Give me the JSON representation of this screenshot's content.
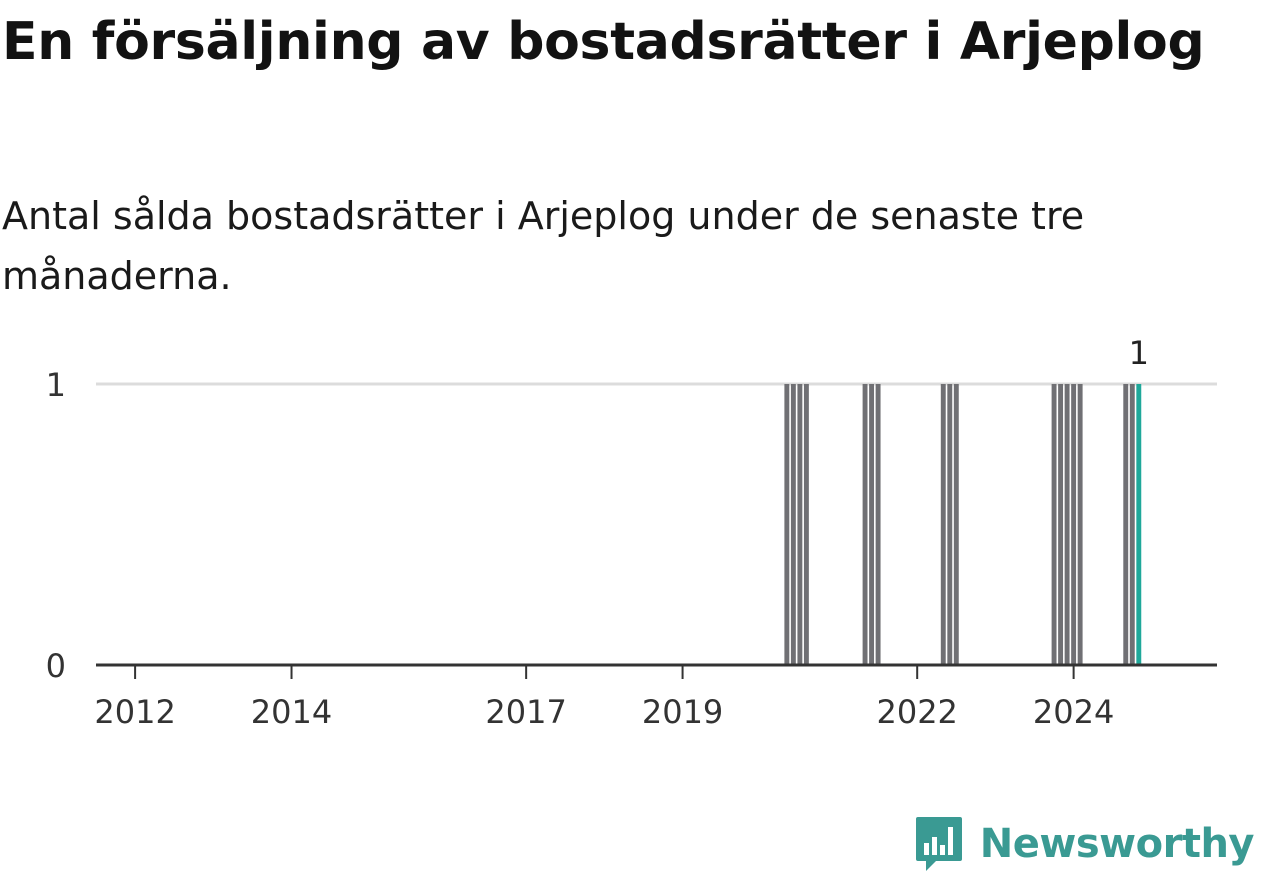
{
  "header": {
    "title": "En försäljning av bostadsrätter i Arjeplog",
    "subtitle": "Antal sålda bostadsrätter i Arjeplog under de senaste tre månaderna."
  },
  "brand": {
    "name": "Newsworthy",
    "icon": "newsworthy-logo-icon",
    "color": "#3a9a93"
  },
  "colors": {
    "bar": "#707074",
    "highlight": "#1fa89a",
    "grid": "#dcdcdc",
    "axis": "#333333"
  },
  "chart_data": {
    "type": "bar",
    "title": "En försäljning av bostadsrätter i Arjeplog",
    "subtitle": "Antal sålda bostadsrätter i Arjeplog under de senaste tre månaderna.",
    "xlabel": "",
    "ylabel": "",
    "ylim": [
      0,
      1
    ],
    "yticks": [
      0,
      1
    ],
    "xticks": [
      "2012",
      "2014",
      "2017",
      "2019",
      "2022",
      "2024"
    ],
    "xlim": [
      "2011-07",
      "2025-11"
    ],
    "grid": true,
    "series": [
      {
        "x": [
          "2020-05",
          "2020-06",
          "2020-07",
          "2020-08",
          "2021-05",
          "2021-06",
          "2021-07",
          "2022-05",
          "2022-06",
          "2022-07",
          "2023-10",
          "2023-11",
          "2023-12",
          "2024-01",
          "2024-02",
          "2024-09",
          "2024-10",
          "2024-11"
        ],
        "values": [
          1,
          1,
          1,
          1,
          1,
          1,
          1,
          1,
          1,
          1,
          1,
          1,
          1,
          1,
          1,
          1,
          1,
          1
        ]
      }
    ],
    "highlight": {
      "x": "2024-11",
      "value": 1,
      "label": "1"
    }
  }
}
